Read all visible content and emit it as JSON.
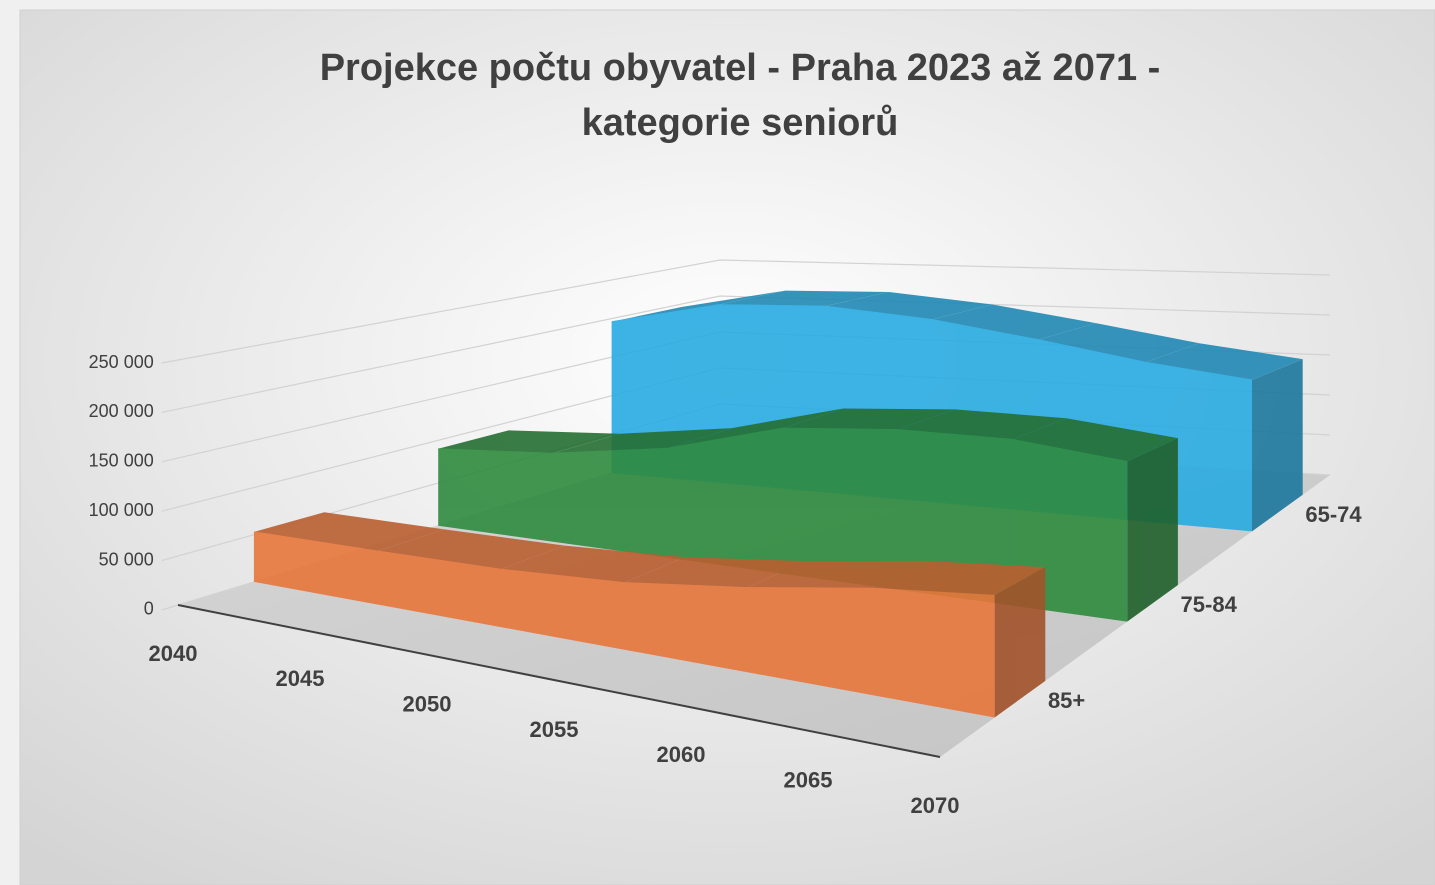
{
  "chart_data": {
    "type": "area3d",
    "title": [
      "Projekce počtu obyvatel - Praha 2023 až 2071 -",
      "kategorie seniorů"
    ],
    "categories": [
      "2040",
      "2045",
      "2050",
      "2055",
      "2060",
      "2065",
      "2070"
    ],
    "series": [
      {
        "name": "65-74",
        "color": "#29abe2",
        "values": [
          196000,
          222000,
          224000,
          212000,
          193000,
          173000,
          159000
        ]
      },
      {
        "name": "75-84",
        "color": "#2e8b3e",
        "values": [
          90000,
          97000,
          113000,
          142000,
          148000,
          146000,
          134000
        ]
      },
      {
        "name": "85+",
        "color": "#e8773c",
        "values": [
          53000,
          52000,
          52000,
          56000,
          66000,
          78000,
          84000
        ]
      }
    ],
    "ylim": [
      0,
      300000
    ],
    "yticks": [
      {
        "value": 0,
        "label": "0"
      },
      {
        "value": 50000,
        "label": "50 000"
      },
      {
        "value": 100000,
        "label": "100 000"
      },
      {
        "value": 150000,
        "label": "150 000"
      },
      {
        "value": 200000,
        "label": "200 000"
      },
      {
        "value": 250000,
        "label": "250 000"
      }
    ],
    "grid": true
  }
}
